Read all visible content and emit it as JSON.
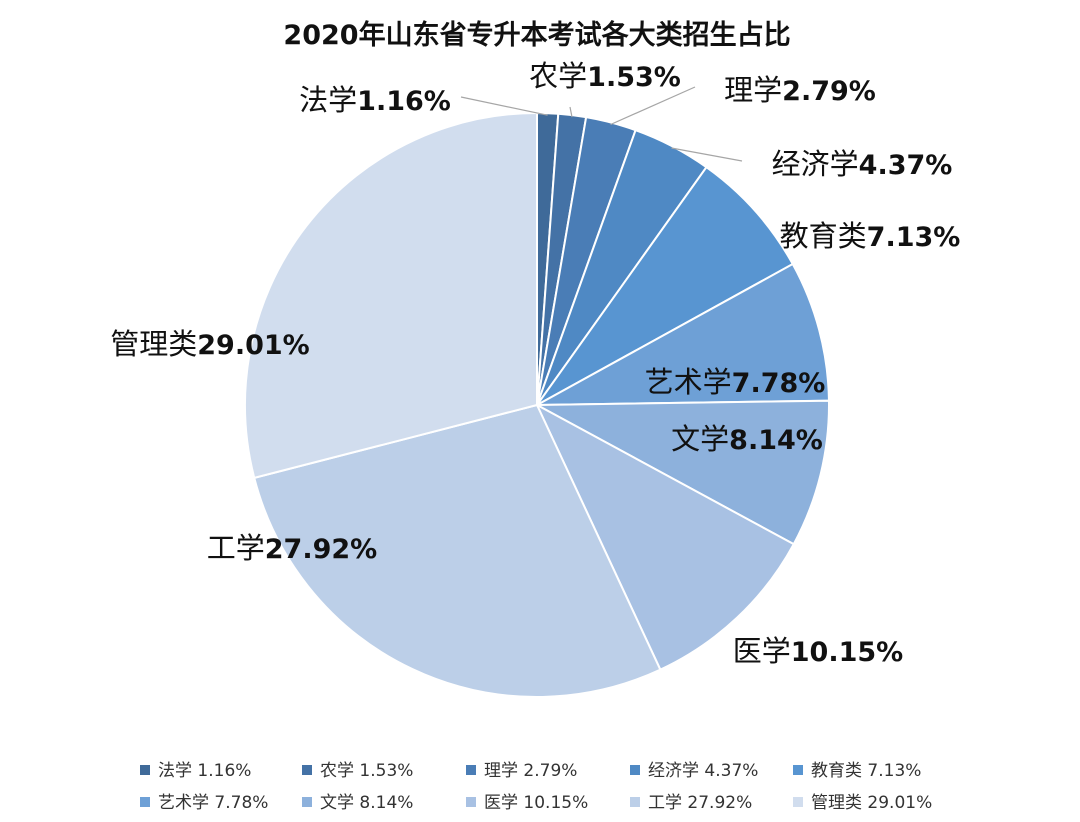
{
  "chart_data": {
    "type": "pie",
    "title": "2020年山东省专升本考试各大类招生占比",
    "legend_position": "bottom",
    "slices": [
      {
        "name": "法学",
        "value": 1.16,
        "label": "1.16%",
        "color": "#3f6a99"
      },
      {
        "name": "农学",
        "value": 1.53,
        "label": "1.53%",
        "color": "#4472a6"
      },
      {
        "name": "理学",
        "value": 2.79,
        "label": "2.79%",
        "color": "#4a7db6"
      },
      {
        "name": "经济学",
        "value": 4.37,
        "label": "4.37%",
        "color": "#4f89c4"
      },
      {
        "name": "教育类",
        "value": 7.13,
        "label": "7.13%",
        "color": "#5895d1"
      },
      {
        "name": "艺术学",
        "value": 7.78,
        "label": "7.78%",
        "color": "#6ea0d6"
      },
      {
        "name": "文学",
        "value": 8.14,
        "label": "8.14%",
        "color": "#8db1dc"
      },
      {
        "name": "医学",
        "value": 10.15,
        "label": "10.15%",
        "color": "#a8c1e3"
      },
      {
        "name": "工学",
        "value": 27.92,
        "label": "27.92%",
        "color": "#bccfe8"
      },
      {
        "name": "管理类",
        "value": 29.01,
        "label": "29.01%",
        "color": "#d1ddee"
      }
    ]
  }
}
